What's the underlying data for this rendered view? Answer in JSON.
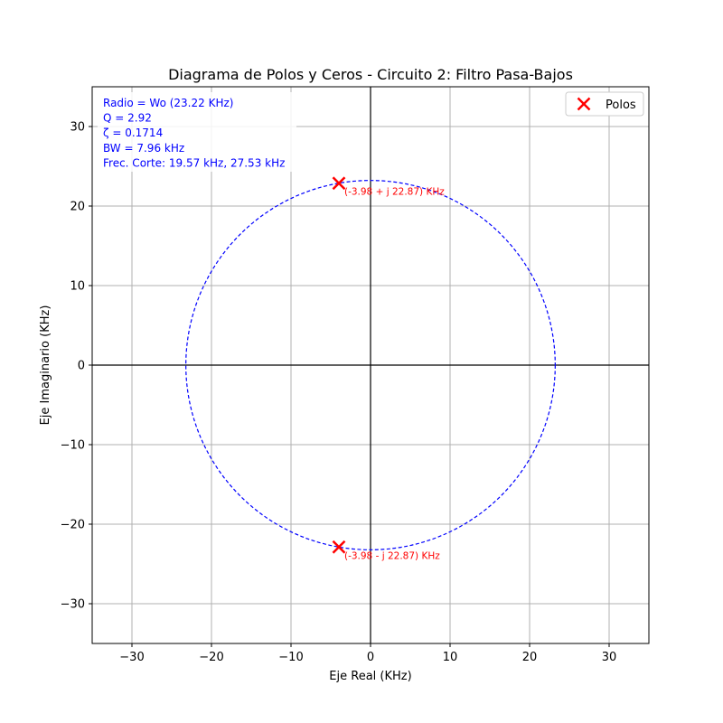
{
  "chart_data": {
    "type": "scatter",
    "title": "Diagrama de Polos y Ceros - Circuito 2: Filtro Pasa-Bajos",
    "xlabel": "Eje Real (KHz)",
    "ylabel": "Eje Imaginario (KHz)",
    "xlim": [
      -35,
      35
    ],
    "ylim": [
      -35,
      35
    ],
    "xticks": [
      -30,
      -20,
      -10,
      0,
      10,
      20,
      30
    ],
    "yticks": [
      -30,
      -20,
      -10,
      0,
      10,
      20,
      30
    ],
    "xtick_labels": [
      "−30",
      "−20",
      "−10",
      "0",
      "10",
      "20",
      "30"
    ],
    "ytick_labels": [
      "−30",
      "−20",
      "−10",
      "0",
      "10",
      "20",
      "30"
    ],
    "grid": true,
    "legend_position": "top-right",
    "series": [
      {
        "name": "Polos",
        "marker": "x",
        "color": "#ff0000",
        "points": [
          {
            "x": -3.98,
            "y": 22.87,
            "label": "(-3.98 + j 22.87) KHz"
          },
          {
            "x": -3.98,
            "y": -22.87,
            "label": "(-3.98 - j 22.87) KHz"
          }
        ]
      }
    ],
    "circle": {
      "center": [
        0,
        0
      ],
      "radius": 23.22,
      "color": "#0000ff",
      "style": "dashed"
    },
    "info_lines": [
      "Radio = Wo (23.22 KHz)",
      "Q = 2.92",
      "ζ = 0.1714",
      "BW = 7.96 kHz",
      "Frec. Corte: 19.57 kHz, 27.53 kHz"
    ],
    "info_color": "#0000ff"
  }
}
